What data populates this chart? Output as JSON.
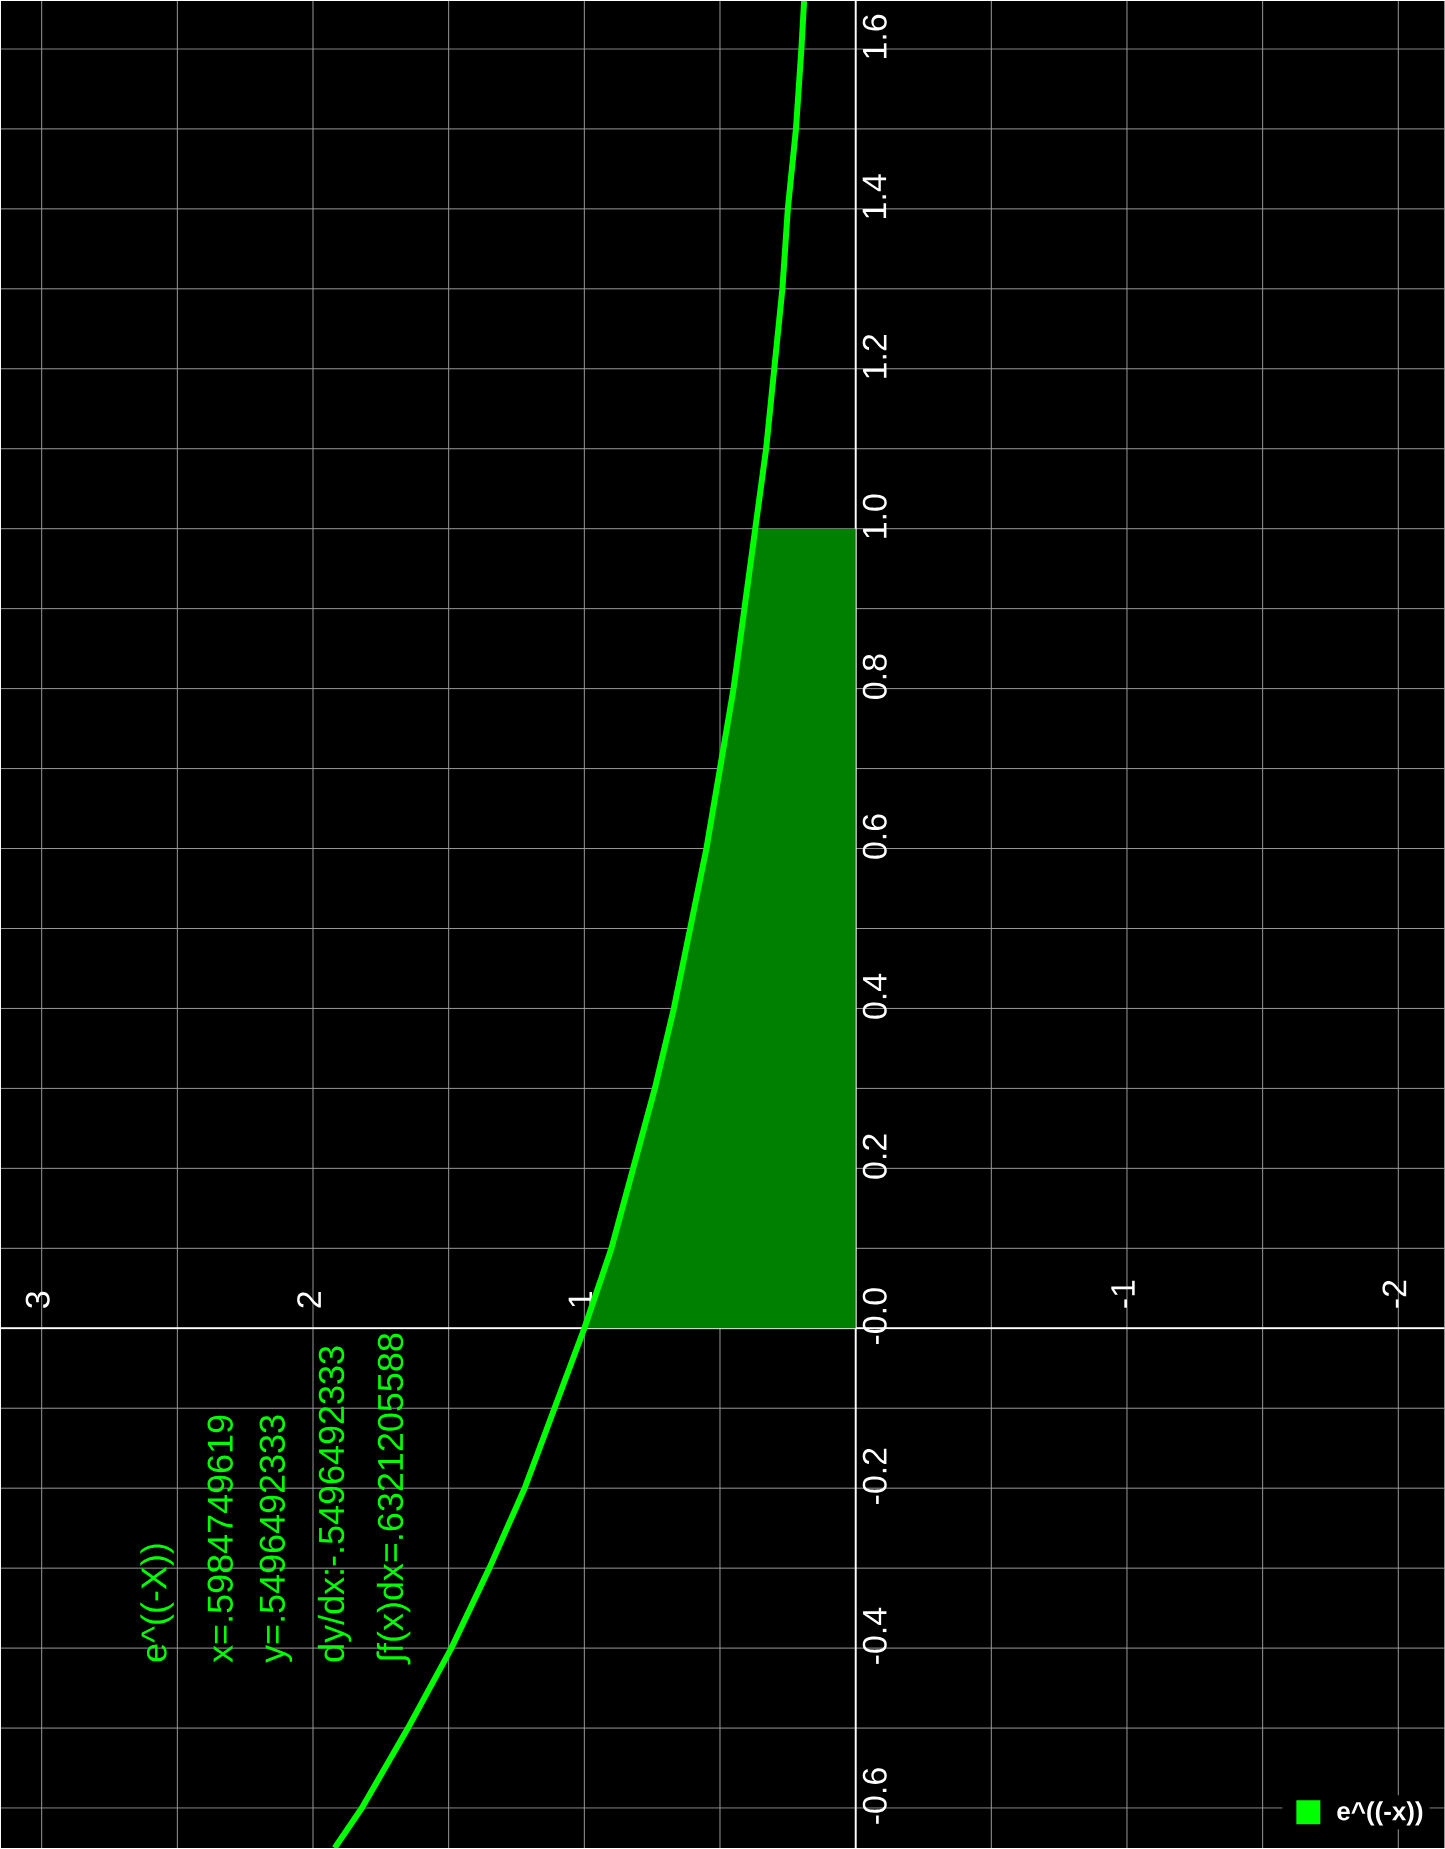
{
  "chart_data": {
    "type": "line",
    "series": [
      {
        "type": "area",
        "color": "#008000",
        "x": [
          0,
          1,
          0.9,
          0.82,
          0.74,
          0.67,
          0.61,
          0.55,
          0.5,
          0.45,
          0.41,
          0.37,
          0
        ],
        "values": [
          0,
          0,
          0.1,
          0.2,
          0.3,
          0.4,
          0.5,
          0.6,
          0.7,
          0.8,
          0.9,
          1.0,
          1.0
        ]
      },
      {
        "name": "e^((-x))",
        "color": "#00ff00",
        "x": [
          1.92,
          1.82,
          1.65,
          1.49,
          1.35,
          1.22,
          1.11,
          1,
          0.9,
          0.82,
          0.74,
          0.67,
          0.61,
          0.55,
          0.5,
          0.45,
          0.41,
          0.37,
          0.33,
          0.3,
          0.27,
          0.25,
          0.22,
          0.2,
          0.19
        ],
        "values": [
          -0.65,
          -0.6,
          -0.5,
          -0.4,
          -0.3,
          -0.2,
          -0.1,
          0,
          0.1,
          0.2,
          0.3,
          0.4,
          0.5,
          0.6,
          0.7,
          0.8,
          0.9,
          1.0,
          1.1,
          1.2,
          1.3,
          1.4,
          1.5,
          1.6,
          1.66
        ]
      }
    ],
    "ylim": [
      -0.65,
      1.66
    ],
    "xlim": [
      3.15,
      -2.17
    ],
    "yticks": [
      -0.6,
      {
        "value": -0.5,
        "label": null
      },
      -0.4,
      {
        "value": -0.3,
        "label": null
      },
      -0.2,
      {
        "value": -0.1,
        "label": null
      },
      {
        "value": 0,
        "label": "-0.0"
      },
      {
        "value": 0.1,
        "label": null
      },
      0.2,
      {
        "value": 0.3,
        "label": null
      },
      0.4,
      {
        "value": 0.5,
        "label": null
      },
      0.6,
      {
        "value": 0.7,
        "label": null
      },
      0.8,
      {
        "value": 0.9,
        "label": null
      },
      {
        "value": 1,
        "label": "1.0"
      },
      {
        "value": 1.1,
        "label": null
      },
      1.2,
      {
        "value": 1.3,
        "label": null
      },
      1.4,
      {
        "value": 1.5,
        "label": null
      },
      1.6
    ],
    "xticks": [
      3,
      {
        "value": 2.5,
        "label": null
      },
      2,
      {
        "value": 1.5,
        "label": null
      },
      1,
      {
        "value": 0.5,
        "label": null
      },
      {
        "value": 0,
        "label": null
      },
      {
        "value": -0.5,
        "label": null
      },
      -1,
      {
        "value": -1.5,
        "label": null
      },
      -2
    ],
    "grid": true,
    "legend": "bottom right",
    "marker": "none",
    "annotations": [
      "e^((-X))",
      "x=.5984749619",
      "y=.5496492333",
      "dy/dx:-.5496492333",
      "∫f(x)dx=.6321205588"
    ]
  }
}
